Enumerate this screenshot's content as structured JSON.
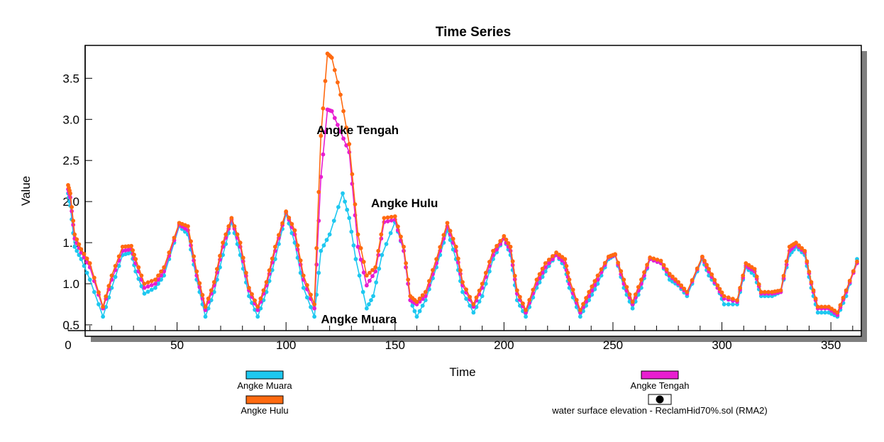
{
  "chart_data": {
    "type": "line",
    "title": "Time Series",
    "xlabel": "Time",
    "ylabel": "Value",
    "xlim": [
      0,
      362
    ],
    "ylim": [
      0.43,
      3.9
    ],
    "x_ticks": [
      0,
      50,
      100,
      150,
      200,
      250,
      300,
      350
    ],
    "y_ticks": [
      0.5,
      1.0,
      1.5,
      2.0,
      2.5,
      3.0,
      3.5
    ],
    "y_tick_labels": [
      "0.5",
      "1.0",
      "1.5",
      "2.0",
      "2.5",
      "3.0",
      "3.5"
    ],
    "grid": false,
    "legend_position": "bottom",
    "series": [
      {
        "name": "Angke Muara",
        "color": "#1ec8f0",
        "x": [
          0,
          1,
          3,
          6,
          10,
          16,
          20,
          25,
          29,
          31,
          35,
          40,
          44,
          51,
          55,
          59,
          63,
          67,
          71,
          75,
          79,
          83,
          87,
          91,
          95,
          100,
          104,
          108,
          113,
          116,
          120,
          126,
          129,
          132,
          137,
          140,
          144,
          150,
          154,
          157,
          160,
          164,
          169,
          174,
          178,
          181,
          186,
          190,
          195,
          200,
          203,
          206,
          210,
          215,
          219,
          224,
          228,
          230,
          235,
          239,
          243,
          248,
          251,
          255,
          259,
          263,
          267,
          272,
          276,
          280,
          284,
          291,
          294,
          298,
          301,
          307,
          311,
          315,
          318,
          323,
          327,
          331,
          334,
          338,
          341,
          344,
          349,
          353,
          357,
          362
        ],
        "y": [
          2.1,
          1.95,
          1.45,
          1.3,
          1.05,
          0.6,
          0.95,
          1.35,
          1.38,
          1.15,
          0.88,
          0.95,
          1.1,
          1.7,
          1.6,
          1.05,
          0.6,
          0.9,
          1.35,
          1.75,
          1.35,
          0.85,
          0.6,
          0.9,
          1.3,
          1.85,
          1.5,
          0.95,
          0.6,
          1.4,
          1.6,
          2.1,
          1.8,
          1.3,
          0.7,
          0.85,
          1.35,
          1.75,
          1.4,
          0.8,
          0.6,
          0.8,
          1.2,
          1.65,
          1.3,
          0.9,
          0.65,
          0.85,
          1.3,
          1.55,
          1.35,
          0.8,
          0.6,
          0.95,
          1.15,
          1.35,
          1.2,
          0.95,
          0.6,
          0.8,
          1.0,
          1.3,
          1.35,
          0.95,
          0.7,
          0.95,
          1.3,
          1.25,
          1.05,
          0.98,
          0.85,
          1.3,
          1.1,
          0.95,
          0.75,
          0.75,
          1.2,
          1.1,
          0.85,
          0.85,
          0.9,
          1.35,
          1.45,
          1.35,
          0.95,
          0.65,
          0.65,
          0.6,
          0.85,
          1.3
        ]
      },
      {
        "name": "Angke Tengah",
        "color": "#e81ed0",
        "x": [
          0,
          1,
          3,
          6,
          10,
          16,
          20,
          25,
          29,
          31,
          35,
          40,
          44,
          51,
          55,
          59,
          63,
          67,
          71,
          75,
          79,
          83,
          87,
          91,
          95,
          100,
          104,
          108,
          113,
          116,
          119,
          121,
          125,
          129,
          133,
          137,
          141,
          145,
          150,
          154,
          157,
          160,
          164,
          169,
          174,
          178,
          181,
          186,
          190,
          195,
          200,
          203,
          206,
          210,
          215,
          219,
          224,
          228,
          230,
          235,
          239,
          243,
          248,
          251,
          255,
          259,
          263,
          267,
          272,
          276,
          280,
          284,
          291,
          294,
          298,
          301,
          307,
          311,
          315,
          318,
          323,
          327,
          331,
          334,
          338,
          341,
          344,
          349,
          353,
          357,
          362
        ],
        "y": [
          2.15,
          2.05,
          1.55,
          1.38,
          1.2,
          0.7,
          1.05,
          1.4,
          1.42,
          1.25,
          0.95,
          1.0,
          1.15,
          1.72,
          1.65,
          1.1,
          0.68,
          0.98,
          1.45,
          1.78,
          1.45,
          0.92,
          0.68,
          0.98,
          1.4,
          1.87,
          1.6,
          1.05,
          0.7,
          2.3,
          3.12,
          3.1,
          2.85,
          2.6,
          1.45,
          0.98,
          1.15,
          1.75,
          1.78,
          1.4,
          0.8,
          0.75,
          0.85,
          1.25,
          1.7,
          1.4,
          0.98,
          0.72,
          0.95,
          1.35,
          1.55,
          1.4,
          0.88,
          0.65,
          1.0,
          1.2,
          1.35,
          1.25,
          1.0,
          0.65,
          0.85,
          1.05,
          1.32,
          1.35,
          1.0,
          0.75,
          1.0,
          1.3,
          1.25,
          1.1,
          1.0,
          0.88,
          1.32,
          1.15,
          0.95,
          0.82,
          0.78,
          1.22,
          1.15,
          0.88,
          0.88,
          0.9,
          1.4,
          1.48,
          1.38,
          1.0,
          0.7,
          0.7,
          0.62,
          0.9,
          1.25
        ]
      },
      {
        "name": "Angke Hulu",
        "color": "#ff6a10",
        "x": [
          0,
          1,
          3,
          6,
          10,
          16,
          20,
          25,
          29,
          31,
          35,
          40,
          44,
          51,
          55,
          59,
          63,
          67,
          71,
          75,
          79,
          83,
          87,
          91,
          95,
          100,
          104,
          108,
          113,
          116,
          119,
          121,
          125,
          129,
          133,
          137,
          141,
          145,
          150,
          154,
          157,
          160,
          164,
          169,
          174,
          178,
          181,
          186,
          190,
          195,
          200,
          203,
          206,
          210,
          215,
          219,
          224,
          228,
          230,
          235,
          239,
          243,
          248,
          251,
          255,
          259,
          263,
          267,
          272,
          276,
          280,
          284,
          291,
          294,
          298,
          301,
          307,
          311,
          315,
          318,
          323,
          327,
          331,
          334,
          338,
          341,
          344,
          349,
          353,
          357,
          362
        ],
        "y": [
          2.2,
          2.1,
          1.6,
          1.42,
          1.25,
          0.72,
          1.1,
          1.45,
          1.46,
          1.3,
          1.0,
          1.05,
          1.2,
          1.74,
          1.7,
          1.15,
          0.72,
          1.02,
          1.5,
          1.8,
          1.5,
          0.95,
          0.72,
          1.02,
          1.45,
          1.88,
          1.65,
          1.1,
          0.75,
          2.8,
          3.8,
          3.75,
          3.3,
          2.7,
          1.6,
          1.1,
          1.2,
          1.8,
          1.82,
          1.45,
          0.85,
          0.78,
          0.9,
          1.3,
          1.74,
          1.45,
          1.02,
          0.75,
          1.0,
          1.4,
          1.58,
          1.45,
          0.92,
          0.68,
          1.05,
          1.25,
          1.38,
          1.3,
          1.05,
          0.68,
          0.9,
          1.1,
          1.33,
          1.36,
          1.05,
          0.78,
          1.05,
          1.32,
          1.28,
          1.12,
          1.02,
          0.9,
          1.33,
          1.18,
          0.98,
          0.85,
          0.8,
          1.25,
          1.18,
          0.9,
          0.9,
          0.92,
          1.45,
          1.5,
          1.4,
          1.02,
          0.72,
          0.72,
          0.65,
          0.92,
          1.27
        ]
      }
    ],
    "annotations": [
      {
        "text": "Angke Tengah",
        "x": 114,
        "y": 2.82
      },
      {
        "text": "Angke Hulu",
        "x": 139,
        "y": 1.93
      },
      {
        "text": "Angke Muara",
        "x": 116,
        "y": 0.52
      }
    ],
    "legend": [
      {
        "label": "Angke Muara",
        "color": "#1ec8f0",
        "kind": "swatch"
      },
      {
        "label": "Angke Tengah",
        "color": "#e81ed0",
        "kind": "swatch"
      },
      {
        "label": "Angke Hulu",
        "color": "#ff6a10",
        "kind": "swatch"
      },
      {
        "label": "water surface elevation - ReclamHid70%.sol (RMA2)",
        "color": "#000000",
        "kind": "marker"
      }
    ]
  }
}
